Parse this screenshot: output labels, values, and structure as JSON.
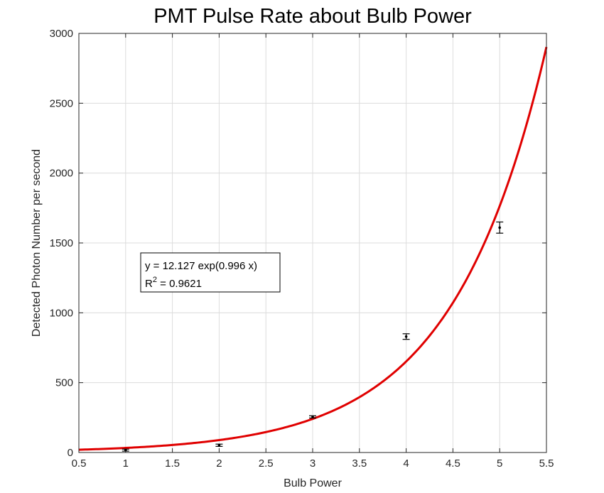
{
  "chart_data": {
    "type": "scatter",
    "title": "PMT Pulse Rate about Bulb Power",
    "xlabel": "Bulb Power",
    "ylabel": "Detected Photon Number per second",
    "xlim": [
      0.5,
      5.5
    ],
    "ylim": [
      0,
      3000
    ],
    "xticks": [
      "0.5",
      "1",
      "1.5",
      "2",
      "2.5",
      "3",
      "3.5",
      "4",
      "4.5",
      "5",
      "5.5"
    ],
    "yticks": [
      "0",
      "500",
      "1000",
      "1500",
      "2000",
      "2500",
      "3000"
    ],
    "grid": true,
    "series": [
      {
        "type": "errorbar",
        "color": "#000000",
        "points": [
          {
            "x": 1,
            "y": 17,
            "err": 7
          },
          {
            "x": 2,
            "y": 52,
            "err": 8
          },
          {
            "x": 3,
            "y": 255,
            "err": 8
          },
          {
            "x": 4,
            "y": 830,
            "err": 20
          },
          {
            "x": 5,
            "y": 1610,
            "err": 40
          }
        ]
      },
      {
        "type": "fit_line",
        "color": "#e00000",
        "model": "exp",
        "a": 12.127,
        "b": 0.996
      }
    ],
    "annotation": {
      "line1": "y = 12.127  exp(0.996  x)",
      "line2_prefix": "R",
      "line2_sup": "2",
      "line2_suffix": " = 0.9621"
    }
  }
}
